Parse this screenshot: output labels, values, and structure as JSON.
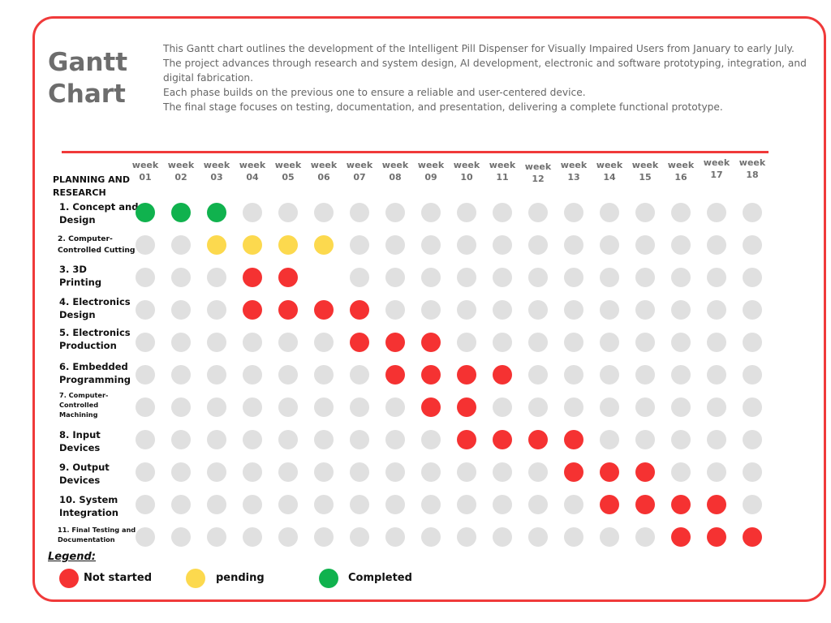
{
  "header": {
    "title": "Gantt\nChart",
    "description": [
      "This Gantt chart outlines the development of the Intelligent Pill Dispenser for Visually Impaired Users from January to early July.",
      "The project advances through research and system design, AI development, electronic and software prototyping, integration, and digital fabrication.",
      "Each phase builds on the previous one to ensure a reliable and user-centered device.",
      "The final stage focuses on testing, documentation, and presentation, delivering a complete functional prototype."
    ]
  },
  "colors": {
    "not_started": "#f53232",
    "pending": "#fcd94e",
    "completed": "#10b24e",
    "empty": "#e0e0e0",
    "accent": "#f03a3a"
  },
  "chart_data": {
    "type": "table",
    "title": "Gantt Chart",
    "section_label": "PLANNING AND\nRESEARCH",
    "weeks": [
      "week\n01",
      "week\n02",
      "week\n03",
      "week\n04",
      "week\n05",
      "week\n06",
      "week\n07",
      "week\n08",
      "week\n09",
      "week\n10",
      "week\n11",
      "week\n12",
      "week\n13",
      "week\n14",
      "week\n15",
      "week\n16",
      "week\n17",
      "week\n18"
    ],
    "tasks": [
      {
        "label": "1. Concept and\nDesign",
        "cells": [
          "C",
          "C",
          "C",
          "-",
          "-",
          "-",
          "-",
          "-",
          "-",
          "-",
          "-",
          "-",
          "-",
          "-",
          "-",
          "-",
          "-",
          "-"
        ]
      },
      {
        "label": "2. Computer-\nControlled Cutting",
        "cells": [
          "-",
          "-",
          "P",
          "P",
          "P",
          "P",
          "-",
          "-",
          "-",
          "-",
          "-",
          "-",
          "-",
          "-",
          "-",
          "-",
          "-",
          "-"
        ]
      },
      {
        "label": "3. 3D\nPrinting",
        "cells": [
          "-",
          "-",
          "-",
          "N",
          "N",
          "x",
          "-",
          "-",
          "-",
          "-",
          "-",
          "-",
          "-",
          "-",
          "-",
          "-",
          "-",
          "-"
        ]
      },
      {
        "label": "4. Electronics\nDesign",
        "cells": [
          "-",
          "-",
          "-",
          "N",
          "N",
          "N",
          "N",
          "-",
          "-",
          "-",
          "-",
          "-",
          "-",
          "-",
          "-",
          "-",
          "-",
          "-"
        ]
      },
      {
        "label": "5. Electronics\nProduction",
        "cells": [
          "-",
          "-",
          "-",
          "-",
          "-",
          "-",
          "N",
          "N",
          "N",
          "-",
          "-",
          "-",
          "-",
          "-",
          "-",
          "-",
          "-",
          "-"
        ]
      },
      {
        "label": "6. Embedded\nProgramming",
        "cells": [
          "-",
          "-",
          "-",
          "-",
          "-",
          "-",
          "-",
          "N",
          "N",
          "N",
          "N",
          "-",
          "-",
          "-",
          "-",
          "-",
          "-",
          "-"
        ]
      },
      {
        "label": "7. Computer-\nControlled\nMachining",
        "cells": [
          "-",
          "-",
          "-",
          "-",
          "-",
          "-",
          "-",
          "-",
          "N",
          "N",
          "-",
          "-",
          "-",
          "-",
          "-",
          "-",
          "-",
          "-"
        ]
      },
      {
        "label": "8. Input\nDevices",
        "cells": [
          "-",
          "-",
          "-",
          "-",
          "-",
          "-",
          "-",
          "-",
          "-",
          "N",
          "N",
          "N",
          "N",
          "-",
          "-",
          "-",
          "-",
          "-"
        ]
      },
      {
        "label": "9. Output\nDevices",
        "cells": [
          "-",
          "-",
          "-",
          "-",
          "-",
          "-",
          "-",
          "-",
          "-",
          "-",
          "-",
          "-",
          "N",
          "N",
          "N",
          "-",
          "-",
          "-"
        ]
      },
      {
        "label": "10. System\nIntegration",
        "cells": [
          "-",
          "-",
          "-",
          "-",
          "-",
          "-",
          "-",
          "-",
          "-",
          "-",
          "-",
          "-",
          "-",
          "N",
          "N",
          "N",
          "N",
          "-"
        ]
      },
      {
        "label": "11. Final Testing and\nDocumentation",
        "cells": [
          "-",
          "-",
          "-",
          "-",
          "-",
          "-",
          "-",
          "-",
          "-",
          "-",
          "-",
          "-",
          "-",
          "-",
          "-",
          "N",
          "N",
          "N"
        ]
      }
    ],
    "status_key": {
      "C": "Completed",
      "P": "pending",
      "N": "Not started",
      "-": "empty",
      "x": "blank"
    },
    "legend": [
      {
        "label": "Not started",
        "status": "N"
      },
      {
        "label": "pending",
        "status": "P"
      },
      {
        "label": "Completed",
        "status": "C"
      }
    ],
    "legend_title": "Legend:"
  }
}
